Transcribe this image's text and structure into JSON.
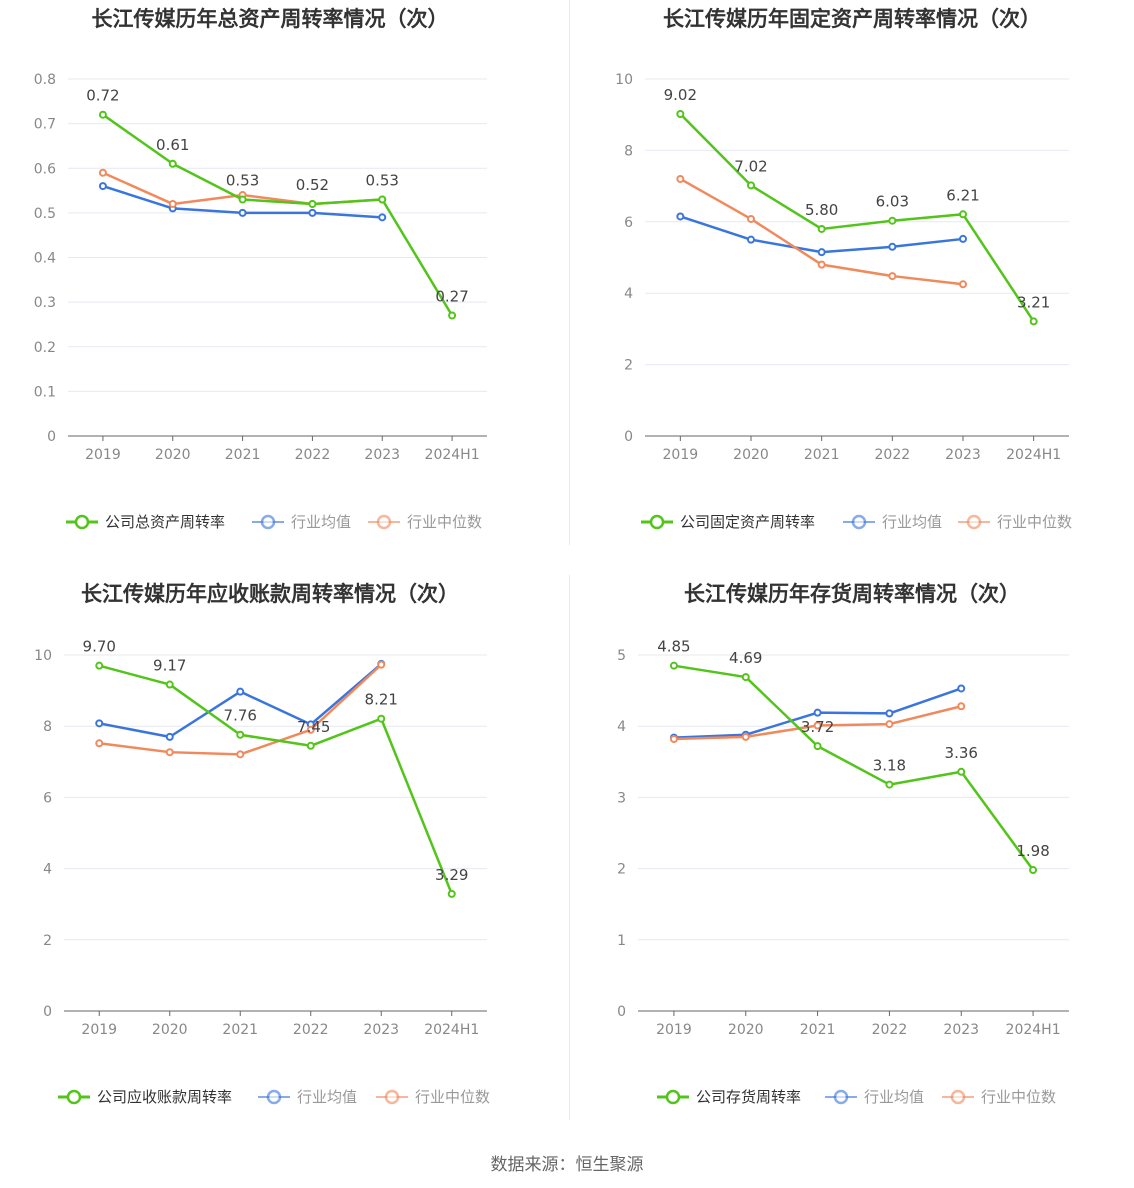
{
  "colors": {
    "company": "#52c41a",
    "avg": "#3a75dd",
    "median": "#f08a5d",
    "grid": "#e6e9f2",
    "axis": "#666666",
    "tick": "#888888",
    "label": "#444444",
    "title": "#333333"
  },
  "source": "数据来源：恒生聚源",
  "chart_data": [
    {
      "type": "line",
      "title": "长江传媒历年总资产周转率情况（次）",
      "categories": [
        "2019",
        "2020",
        "2021",
        "2022",
        "2023",
        "2024H1"
      ],
      "ylim": [
        0,
        0.8
      ],
      "yticks": [
        "0",
        "0.1",
        "0.2",
        "0.3",
        "0.4",
        "0.5",
        "0.6",
        "0.7",
        "0.8"
      ],
      "grid": true,
      "legend_position": "bottom",
      "series": [
        {
          "name": "公司总资产周转率",
          "role": "company",
          "values": [
            0.72,
            0.61,
            0.53,
            0.52,
            0.53,
            0.27
          ],
          "labels": [
            "0.72",
            "0.61",
            "0.53",
            "0.52",
            "0.53",
            "0.27"
          ]
        },
        {
          "name": "行业均值",
          "role": "avg",
          "values": [
            0.56,
            0.51,
            0.5,
            0.5,
            0.49,
            null
          ]
        },
        {
          "name": "行业中位数",
          "role": "median",
          "values": [
            0.59,
            0.52,
            0.54,
            0.52,
            0.53,
            null
          ]
        }
      ]
    },
    {
      "type": "line",
      "title": "长江传媒历年固定资产周转率情况（次）",
      "categories": [
        "2019",
        "2020",
        "2021",
        "2022",
        "2023",
        "2024H1"
      ],
      "ylim": [
        0,
        10
      ],
      "yticks": [
        "0",
        "2",
        "4",
        "6",
        "8",
        "10"
      ],
      "grid": true,
      "legend_position": "bottom",
      "series": [
        {
          "name": "公司固定资产周转率",
          "role": "company",
          "values": [
            9.02,
            7.02,
            5.8,
            6.03,
            6.21,
            3.21
          ],
          "labels": [
            "9.02",
            "7.02",
            "5.80",
            "6.03",
            "6.21",
            "3.21"
          ]
        },
        {
          "name": "行业均值",
          "role": "avg",
          "values": [
            6.15,
            5.5,
            5.15,
            5.3,
            5.52,
            null
          ]
        },
        {
          "name": "行业中位数",
          "role": "median",
          "values": [
            7.2,
            6.08,
            4.8,
            4.48,
            4.25,
            null
          ]
        }
      ]
    },
    {
      "type": "line",
      "title": "长江传媒历年应收账款周转率情况（次）",
      "categories": [
        "2019",
        "2020",
        "2021",
        "2022",
        "2023",
        "2024H1"
      ],
      "ylim": [
        0,
        10
      ],
      "yticks": [
        "0",
        "2",
        "4",
        "6",
        "8",
        "10"
      ],
      "grid": true,
      "legend_position": "bottom",
      "series": [
        {
          "name": "公司应收账款周转率",
          "role": "company",
          "values": [
            9.7,
            9.17,
            7.76,
            7.45,
            8.21,
            3.29
          ],
          "labels": [
            "9.70",
            "9.17",
            "7.76",
            "7.45",
            "8.21",
            "3.29"
          ]
        },
        {
          "name": "行业均值",
          "role": "avg",
          "values": [
            8.08,
            7.7,
            8.97,
            8.05,
            9.75,
            null
          ]
        },
        {
          "name": "行业中位数",
          "role": "median",
          "values": [
            7.52,
            7.27,
            7.21,
            7.9,
            9.73,
            null
          ]
        }
      ]
    },
    {
      "type": "line",
      "title": "长江传媒历年存货周转率情况（次）",
      "categories": [
        "2019",
        "2020",
        "2021",
        "2022",
        "2023",
        "2024H1"
      ],
      "ylim": [
        0,
        5
      ],
      "yticks": [
        "0",
        "1",
        "2",
        "3",
        "4",
        "5"
      ],
      "grid": true,
      "legend_position": "bottom",
      "series": [
        {
          "name": "公司存货周转率",
          "role": "company",
          "values": [
            4.85,
            4.69,
            3.72,
            3.18,
            3.36,
            1.98
          ],
          "labels": [
            "4.85",
            "4.69",
            "3.72",
            "3.18",
            "3.36",
            "1.98"
          ]
        },
        {
          "name": "行业均值",
          "role": "avg",
          "values": [
            3.84,
            3.88,
            4.19,
            4.18,
            4.53,
            null
          ]
        },
        {
          "name": "行业中位数",
          "role": "median",
          "values": [
            3.82,
            3.85,
            4.01,
            4.03,
            4.28,
            null
          ]
        }
      ]
    }
  ]
}
